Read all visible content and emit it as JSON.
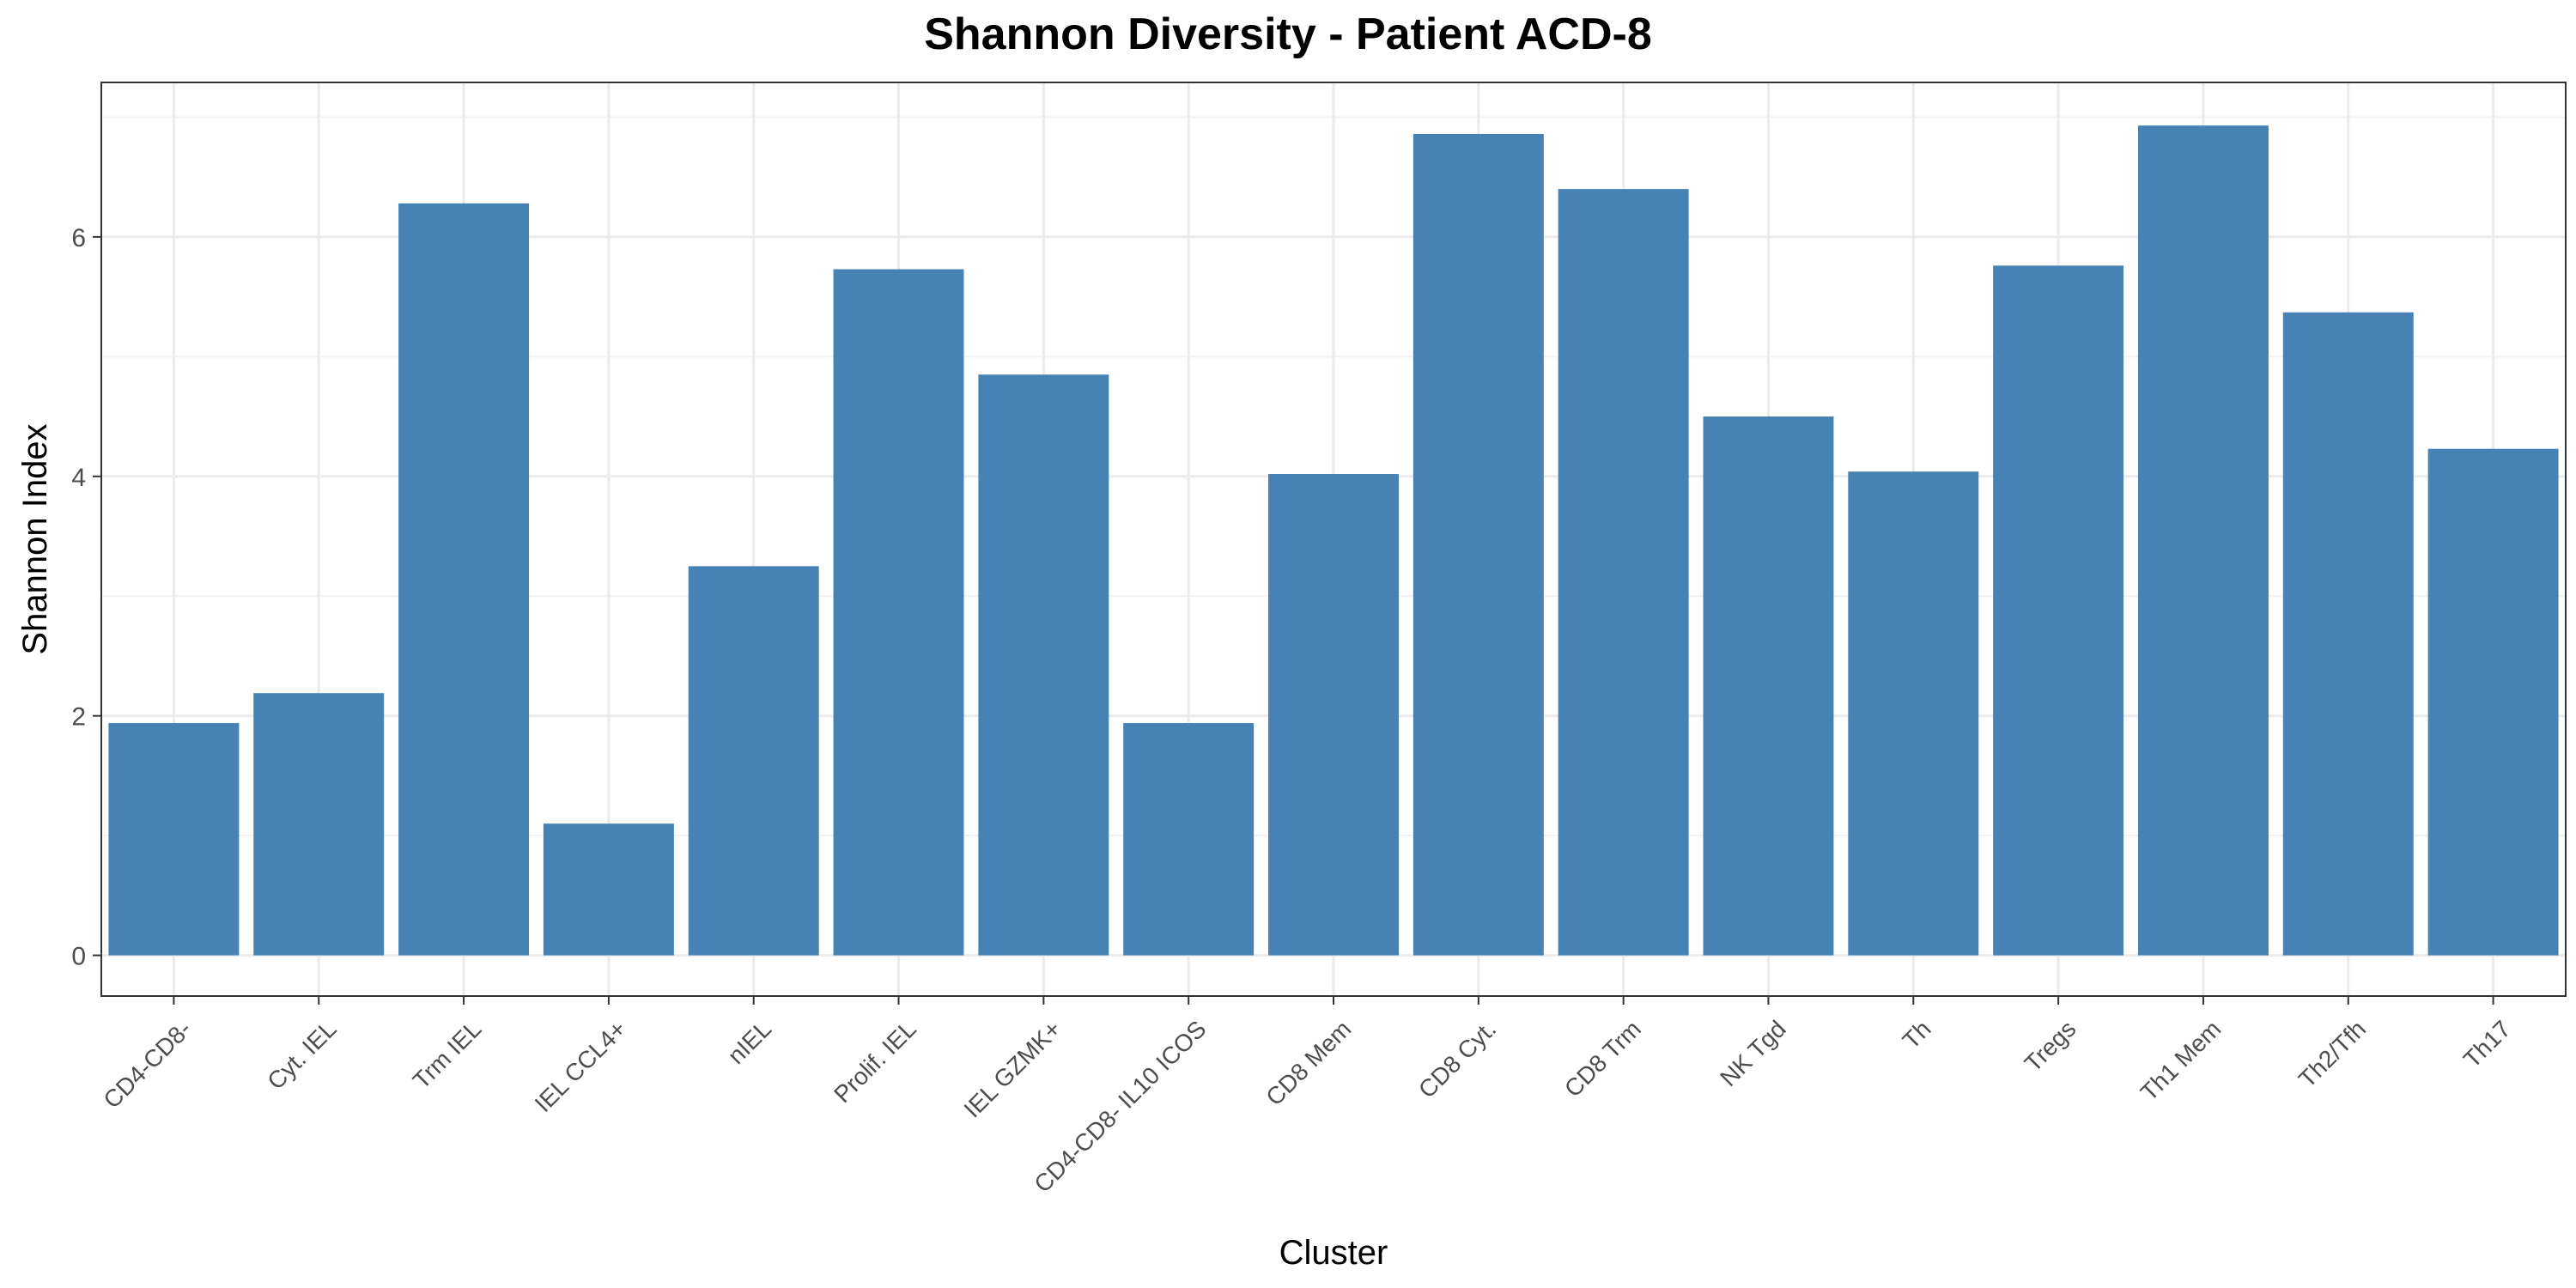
{
  "chart_data": {
    "type": "bar",
    "title": "Shannon Diversity - Patient ACD-8",
    "xlabel": "Cluster",
    "ylabel": "Shannon Index",
    "categories": [
      "CD4-CD8-",
      "Cyt. IEL",
      "Trm IEL",
      "IEL CCL4+",
      "nIEL",
      "Prolif. IEL",
      "IEL GZMK+",
      "CD4-CD8- IL10 ICOS",
      "CD8 Mem",
      "CD8 Cyt.",
      "CD8 Trm",
      "NK Tgd",
      "Th",
      "Tregs",
      "Th1 Mem",
      "Th2/Tfh",
      "Th17"
    ],
    "values": [
      1.94,
      2.19,
      6.28,
      1.1,
      3.25,
      5.73,
      4.85,
      1.94,
      4.02,
      6.86,
      6.4,
      4.5,
      4.04,
      5.76,
      6.93,
      5.37,
      4.23
    ],
    "ylim": [
      -0.34,
      7.29
    ],
    "yticks": [
      0,
      2,
      4,
      6
    ],
    "grid": true,
    "bar_color": "#4682B4"
  }
}
